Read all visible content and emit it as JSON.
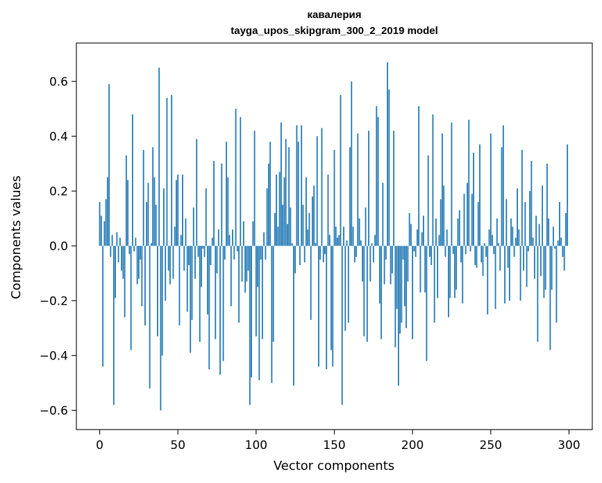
{
  "chart_data": {
    "type": "bar",
    "title_line1": "кавалерия",
    "title_line2": "tayga_upos_skipgram_300_2_2019 model",
    "xlabel": "Vector components",
    "ylabel": "Components values",
    "xlim": [
      -14.9,
      314.9
    ],
    "ylim": [
      -0.67,
      0.74
    ],
    "xticks": [
      0,
      50,
      100,
      150,
      200,
      250,
      300
    ],
    "yticks": [
      -0.6,
      -0.4,
      -0.2,
      0.0,
      0.2,
      0.4,
      0.6
    ],
    "ytick_labels": [
      "−0.6",
      "−0.4",
      "−0.2",
      "0.0",
      "0.2",
      "0.4",
      "0.6"
    ],
    "bar_color": "#1f77b4",
    "grid": false,
    "values": [
      0.16,
      0.11,
      -0.44,
      0.09,
      0.17,
      0.25,
      0.59,
      -0.04,
      0.04,
      -0.58,
      -0.19,
      0.05,
      -0.06,
      0.03,
      -0.09,
      -0.12,
      -0.26,
      0.33,
      0.24,
      -0.03,
      -0.38,
      0.48,
      -0.02,
      0.03,
      -0.14,
      -0.12,
      -0.05,
      -0.22,
      0.35,
      -0.29,
      0.16,
      0.23,
      -0.52,
      0.01,
      0.36,
      0.25,
      0.15,
      -0.33,
      0.65,
      -0.6,
      -0.4,
      0.21,
      -0.2,
      0.54,
      -0.09,
      -0.14,
      0.55,
      -0.12,
      0.07,
      0.24,
      0.26,
      -0.29,
      0.04,
      0.26,
      -0.09,
      0.1,
      -0.24,
      -0.07,
      -0.39,
      -0.27,
      0.14,
      -0.12,
      0.39,
      -0.04,
      -0.35,
      -0.15,
      -0.01,
      -0.04,
      0.21,
      -0.25,
      -0.45,
      -0.07,
      0.03,
      0.31,
      -0.34,
      -0.1,
      0.06,
      -0.47,
      0.3,
      -0.42,
      -0.05,
      0.38,
      0.25,
      0.04,
      -0.22,
      0.06,
      -0.05,
      0.5,
      -0.02,
      -0.28,
      0.47,
      -0.13,
      0.09,
      -0.17,
      -0.13,
      -0.09,
      -0.58,
      -0.48,
      0.09,
      0.42,
      -0.33,
      -0.15,
      -0.49,
      -0.05,
      -0.34,
      0.05,
      -0.05,
      0.21,
      0.3,
      0.38,
      -0.5,
      -0.35,
      0.12,
      0.26,
      0.07,
      0.27,
      0.45,
      0.15,
      0.25,
      0.39,
      0.08,
      0.36,
      0.14,
      0.01,
      -0.51,
      -0.1,
      0.44,
      0.38,
      -0.07,
      0.44,
      0.15,
      -0.06,
      0.25,
      0.06,
      0.12,
      -0.27,
      0.18,
      0.22,
      0.01,
      0.4,
      -0.44,
      -0.05,
      0.43,
      -0.06,
      -0.03,
      -0.45,
      0.26,
      0.04,
      -0.38,
      -0.44,
      0.35,
      0.07,
      0.03,
      0.04,
      0.55,
      -0.58,
      0.07,
      -0.31,
      0.02,
      -0.28,
      0.36,
      0.6,
      0.07,
      -0.06,
      -0.04,
      0.41,
      0.1,
      0.02,
      -0.13,
      -0.33,
      0.14,
      -0.35,
      0.42,
      -0.13,
      0.01,
      -0.06,
      0.04,
      0.51,
      0.47,
      -0.21,
      -0.34,
      0.23,
      -0.14,
      -0.05,
      0.67,
      0.57,
      -0.14,
      -0.1,
      0.42,
      -0.37,
      -0.23,
      -0.51,
      -0.32,
      -0.28,
      -0.05,
      -0.22,
      -0.3,
      -0.13,
      0.12,
      0.08,
      -0.34,
      -0.02,
      -0.04,
      0.06,
      0.51,
      -0.17,
      0.05,
      0.11,
      -0.17,
      -0.42,
      0.33,
      -0.04,
      -0.07,
      0.48,
      -0.28,
      0.1,
      -0.19,
      0.04,
      0.17,
      0.41,
      0.22,
      -0.04,
      0.06,
      -0.26,
      -0.19,
      0.45,
      -0.03,
      -0.19,
      -0.16,
      0.1,
      0.13,
      -0.06,
      -0.21,
      0.19,
      -0.03,
      0.23,
      0.46,
      -0.02,
      0.19,
      0.34,
      -0.07,
      -0.08,
      0.16,
      0.37,
      -0.06,
      -0.11,
      0.01,
      -0.04,
      -0.25,
      0.06,
      0.41,
      0.04,
      -0.03,
      -0.23,
      0.1,
      0.01,
      -0.09,
      0.36,
      0.44,
      -0.21,
      0.17,
      -0.08,
      -0.2,
      0.1,
      0.07,
      -0.04,
      0.03,
      0.21,
      0.06,
      -0.2,
      0.35,
      -0.09,
      0.16,
      -0.15,
      -0.02,
      0.2,
      0.31,
      0.03,
      -0.12,
      0.11,
      -0.35,
      0.08,
      -0.11,
      0.22,
      -0.19,
      -0.16,
      0.3,
      0.1,
      -0.38,
      -0.16,
      0.07,
      -0.01,
      -0.28,
      0.02,
      0.16,
      0.03,
      -0.04,
      -0.09,
      0.12,
      0.37
    ]
  }
}
